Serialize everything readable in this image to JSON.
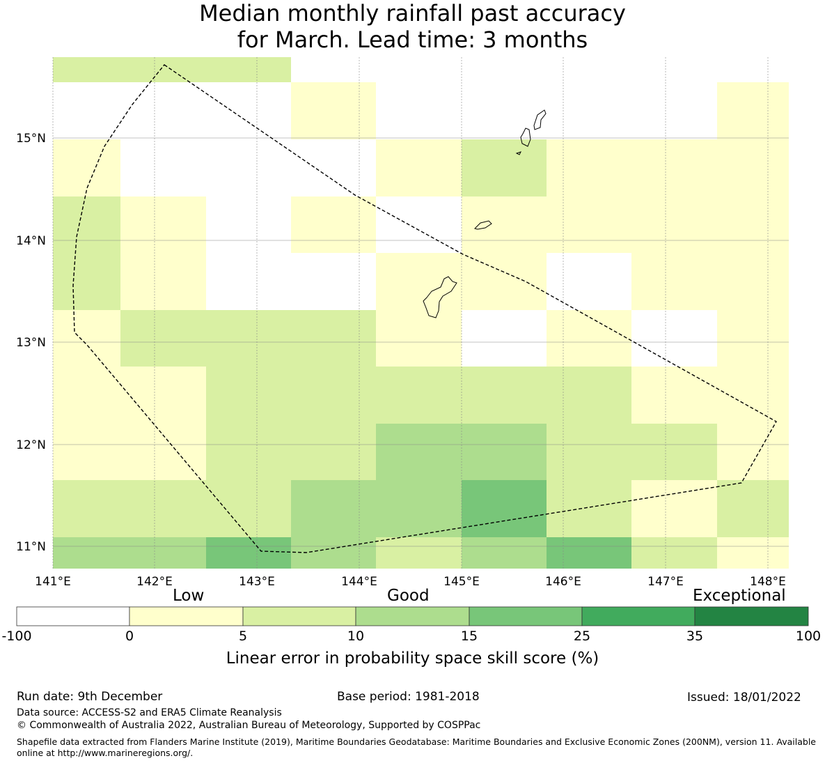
{
  "title": {
    "line1": "Median monthly rainfall past accuracy",
    "line2": "for March. Lead time: 3 months"
  },
  "map": {
    "x_ticks": [
      "141°E",
      "142°E",
      "143°E",
      "144°E",
      "145°E",
      "146°E",
      "147°E",
      "148°E"
    ],
    "y_ticks": [
      "15°N",
      "14°N",
      "13°N",
      "12°N",
      "11°N"
    ],
    "skill_grid": [
      [
        "5-10",
        "5-10",
        "5-10",
        "none",
        "none",
        "none",
        "none",
        "none"
      ],
      [
        "<0",
        "<0",
        "<0",
        "0-5",
        "none",
        "none",
        "none",
        "none",
        "0-5"
      ],
      [
        "0-5",
        "<0",
        "<0",
        "<0",
        "0-5",
        "5-10",
        "0-5",
        "0-5",
        "0-5"
      ],
      [
        "5-10",
        "0-5",
        "<0",
        "0-5",
        "<0",
        "0-5",
        "0-5",
        "0-5",
        "0-5"
      ],
      [
        "5-10",
        "0-5",
        "<0",
        "<0",
        "0-5",
        "0-5",
        "<0",
        "0-5",
        "0-5"
      ],
      [
        "0-5",
        "5-10",
        "5-10",
        "5-10",
        "0-5",
        "<0",
        "0-5",
        "<0",
        "0-5"
      ],
      [
        "0-5",
        "0-5",
        "5-10",
        "5-10",
        "5-10",
        "5-10",
        "5-10",
        "0-5",
        "0-5"
      ],
      [
        "0-5",
        "0-5",
        "5-10",
        "5-10",
        "10-15",
        "10-15",
        "5-10",
        "5-10",
        "0-5"
      ],
      [
        "5-10",
        "5-10",
        "5-10",
        "10-15",
        "10-15",
        "15-25",
        "5-10",
        "0-5",
        "5-10"
      ],
      [
        "10-15",
        "10-15",
        "15-25",
        "10-15",
        "5-10",
        "10-15",
        "15-25",
        "5-10",
        "0-5"
      ]
    ]
  },
  "colorbar": {
    "categories": [
      "Low",
      "Good",
      "Exceptional"
    ],
    "ticks": [
      "-100",
      "0",
      "5",
      "10",
      "15",
      "25",
      "35",
      "100"
    ],
    "colors": [
      "#ffffff",
      "#ffffcc",
      "#d9f0a3",
      "#addd8e",
      "#78c679",
      "#41ab5d",
      "#238443"
    ],
    "title": "Linear error in probability space skill score (%)"
  },
  "footer": {
    "run_date": "Run date: 9th December",
    "base_period": "Base period: 1981-2018",
    "issued": "Issued: 18/01/2022",
    "data_source": "Data source: ACCESS-S2 and ERA5 Climate Reanalysis",
    "copyright": "© Commonwealth of Australia 2022, Australian Bureau of Meteorology, Supported by COSPPac",
    "shapefile": "Shapefile data extracted from Flanders Marine Institute (2019), Maritime Boundaries Geodatabase: Maritime Boundaries and Exclusive Economic Zones (200NM), version 11. Available online at http://www.marineregions.org/."
  }
}
